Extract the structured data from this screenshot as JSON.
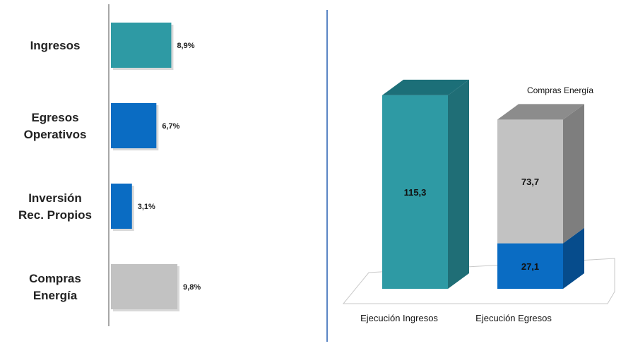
{
  "chart_data": [
    {
      "type": "bar",
      "orientation": "horizontal",
      "categories": [
        [
          "Ingresos"
        ],
        [
          "Egresos",
          "Operativos"
        ],
        [
          "Inversión",
          "Rec. Propios"
        ],
        [
          "Compras",
          "Energía"
        ]
      ],
      "values": [
        8.9,
        6.7,
        3.1,
        9.8
      ],
      "value_labels": [
        "8,9%",
        "6,7%",
        "3,1%",
        "9,8%"
      ],
      "colors": [
        "#2e9aa4",
        "#0a6cc3",
        "#0a6cc3",
        "#c2c2c2"
      ],
      "xlim": [
        0,
        10
      ],
      "grid": false
    },
    {
      "type": "bar",
      "stacked": true,
      "style": "3d",
      "categories": [
        "Ejecución Ingresos",
        "Ejecución Egresos"
      ],
      "series": [
        {
          "values": [
            115.3,
            27.1
          ],
          "labels": [
            "115,3",
            "27,1"
          ],
          "colors": [
            "#2e9aa4",
            "#0a6cc3"
          ]
        },
        {
          "name": "Compras Energía",
          "values": [
            null,
            73.7
          ],
          "labels": [
            null,
            "73,7"
          ],
          "colors": [
            null,
            "#c2c2c2"
          ]
        }
      ],
      "grid": false
    }
  ]
}
